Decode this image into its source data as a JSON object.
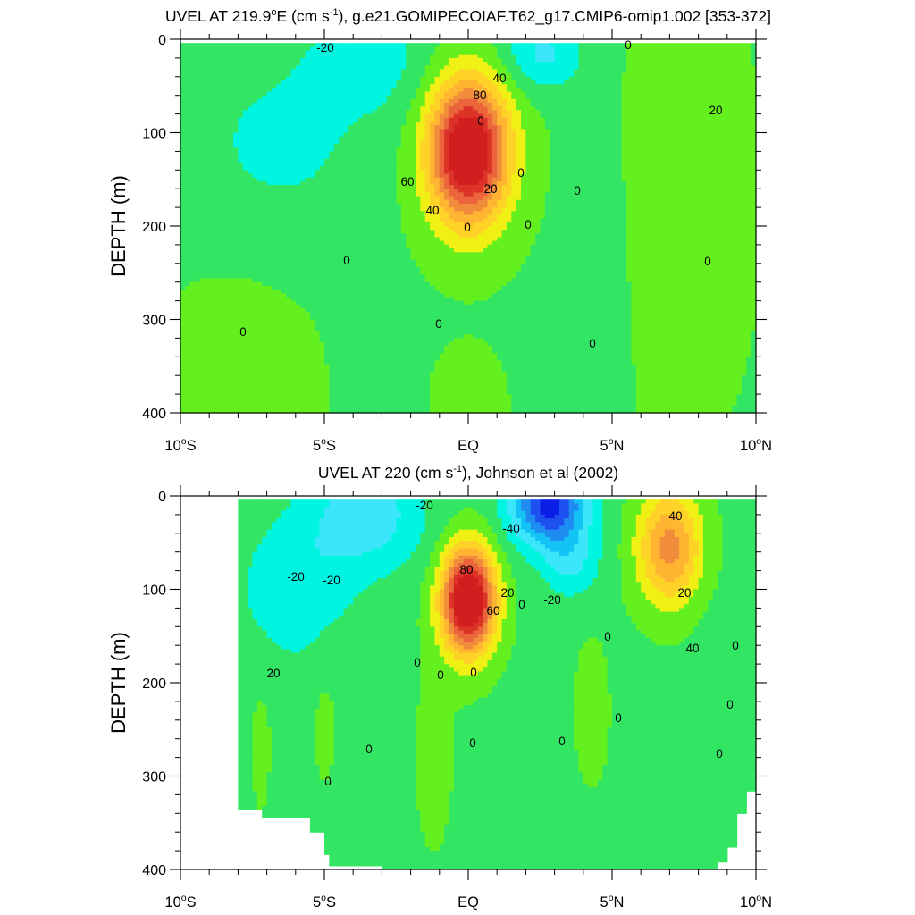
{
  "colors": {
    "level_fills": [
      "#0a1ee6",
      "#1e50f0",
      "#1e8cf0",
      "#14c3f5",
      "#3ce6fa",
      "#00f5e1",
      "#32e664",
      "#64f01e",
      "#f0f014",
      "#ffd228",
      "#ffb432",
      "#f08c3c",
      "#eb643c",
      "#dc3228",
      "#d21e1e"
    ],
    "contour_line": "#000000",
    "missing": "#ffffff"
  },
  "chart_data": [
    {
      "type": "heatmap",
      "title_prefix": "UVEL AT 219.9",
      "title_degree": "o",
      "title_middle": "E (cm s",
      "title_sup": "-1",
      "title_suffix": "), g.e21.GOMIPECOIAF.T62_g17.CMIP6-omip1.002 [353-372]",
      "ylabel": "DEPTH (m)",
      "xlabel": "",
      "x_ticks": [
        "10°S",
        "5°S",
        "EQ",
        "5°N",
        "10°N"
      ],
      "x_tick_values": [
        -10,
        -5,
        0,
        5,
        10
      ],
      "y_ticks": [
        "0",
        "100",
        "200",
        "300",
        "400"
      ],
      "y_tick_values": [
        0,
        100,
        200,
        300,
        400
      ],
      "xlim": [
        -10,
        10
      ],
      "ylim": [
        400,
        0
      ],
      "units": "cm s-1",
      "contour_interval": 10,
      "contour_labels": [
        "-20",
        "0",
        "40",
        "80",
        "0",
        "20",
        "0",
        "60",
        "20",
        "0",
        "40",
        "0",
        "0",
        "0",
        "0",
        "0",
        "0",
        "0"
      ],
      "features": [
        {
          "name": "Equatorial Undercurrent core",
          "x": 0,
          "depth": 120,
          "max": 90
        },
        {
          "name": "Westward surface flow north of equator",
          "x": 2.5,
          "depth": 20,
          "min": -20
        }
      ]
    },
    {
      "type": "heatmap",
      "title_prefix": "UVEL AT 220 (cm s",
      "title_sup": "-1",
      "title_suffix": "), Johnson et al (2002)",
      "ylabel": "DEPTH (m)",
      "xlabel": "",
      "x_ticks": [
        "10°S",
        "5°S",
        "EQ",
        "5°N",
        "10°N"
      ],
      "x_tick_values": [
        -10,
        -5,
        0,
        5,
        10
      ],
      "y_ticks": [
        "0",
        "100",
        "200",
        "300",
        "400"
      ],
      "y_tick_values": [
        0,
        100,
        200,
        300,
        400
      ],
      "xlim": [
        -10,
        10
      ],
      "ylim": [
        400,
        0
      ],
      "units": "cm s-1",
      "contour_interval": 10,
      "contour_labels": [
        "-20",
        "-40",
        "40",
        "-20",
        "-20",
        "80",
        "20",
        "60",
        "-20",
        "20",
        "0",
        "0",
        "0",
        "0",
        "0",
        "20",
        "40",
        "0",
        "0",
        "0",
        "0",
        "0",
        "0",
        "0",
        "0"
      ],
      "features": [
        {
          "name": "Equatorial Undercurrent core",
          "x": 0,
          "depth": 110,
          "max": 95
        },
        {
          "name": "South Equatorial Current",
          "x": 2.5,
          "depth": 10,
          "min": -60
        },
        {
          "name": "North Equatorial Countercurrent",
          "x": 7,
          "depth": 60,
          "max": 45
        }
      ]
    }
  ]
}
